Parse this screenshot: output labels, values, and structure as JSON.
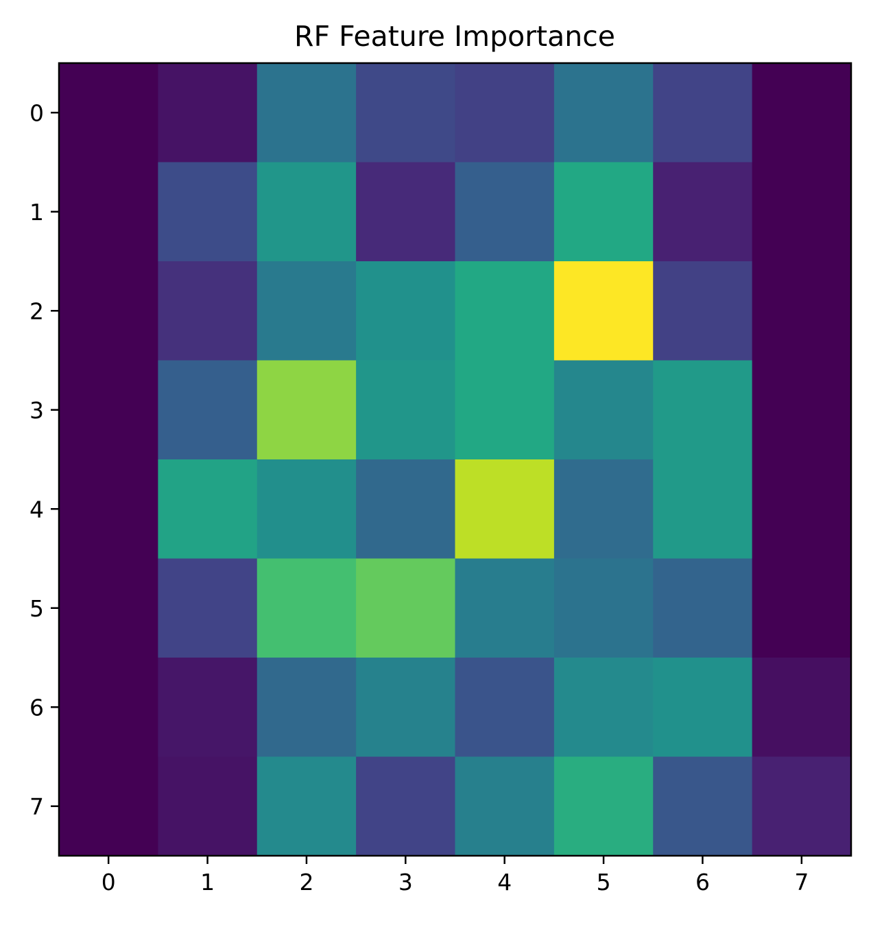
{
  "chart_data": {
    "type": "heatmap",
    "title": "RF Feature Importance",
    "xlabel": "",
    "ylabel": "",
    "colormap": "viridis",
    "x_ticks": [
      "0",
      "1",
      "2",
      "3",
      "4",
      "5",
      "6",
      "7"
    ],
    "y_ticks": [
      "0",
      "1",
      "2",
      "3",
      "4",
      "5",
      "6",
      "7"
    ],
    "value_range": [
      0,
      1
    ],
    "grid": false,
    "legend": "none",
    "values": [
      [
        0.0,
        0.05,
        0.38,
        0.22,
        0.19,
        0.38,
        0.2,
        0.0
      ],
      [
        0.0,
        0.23,
        0.52,
        0.12,
        0.3,
        0.6,
        0.09,
        0.0
      ],
      [
        0.0,
        0.14,
        0.41,
        0.5,
        0.6,
        1.0,
        0.19,
        0.0
      ],
      [
        0.0,
        0.3,
        0.83,
        0.52,
        0.6,
        0.46,
        0.54,
        0.0
      ],
      [
        0.0,
        0.58,
        0.49,
        0.34,
        0.9,
        0.35,
        0.54,
        0.0
      ],
      [
        0.0,
        0.2,
        0.7,
        0.76,
        0.42,
        0.38,
        0.32,
        0.0
      ],
      [
        0.0,
        0.06,
        0.34,
        0.44,
        0.26,
        0.47,
        0.5,
        0.04
      ],
      [
        0.0,
        0.05,
        0.47,
        0.2,
        0.43,
        0.62,
        0.27,
        0.09
      ]
    ]
  }
}
